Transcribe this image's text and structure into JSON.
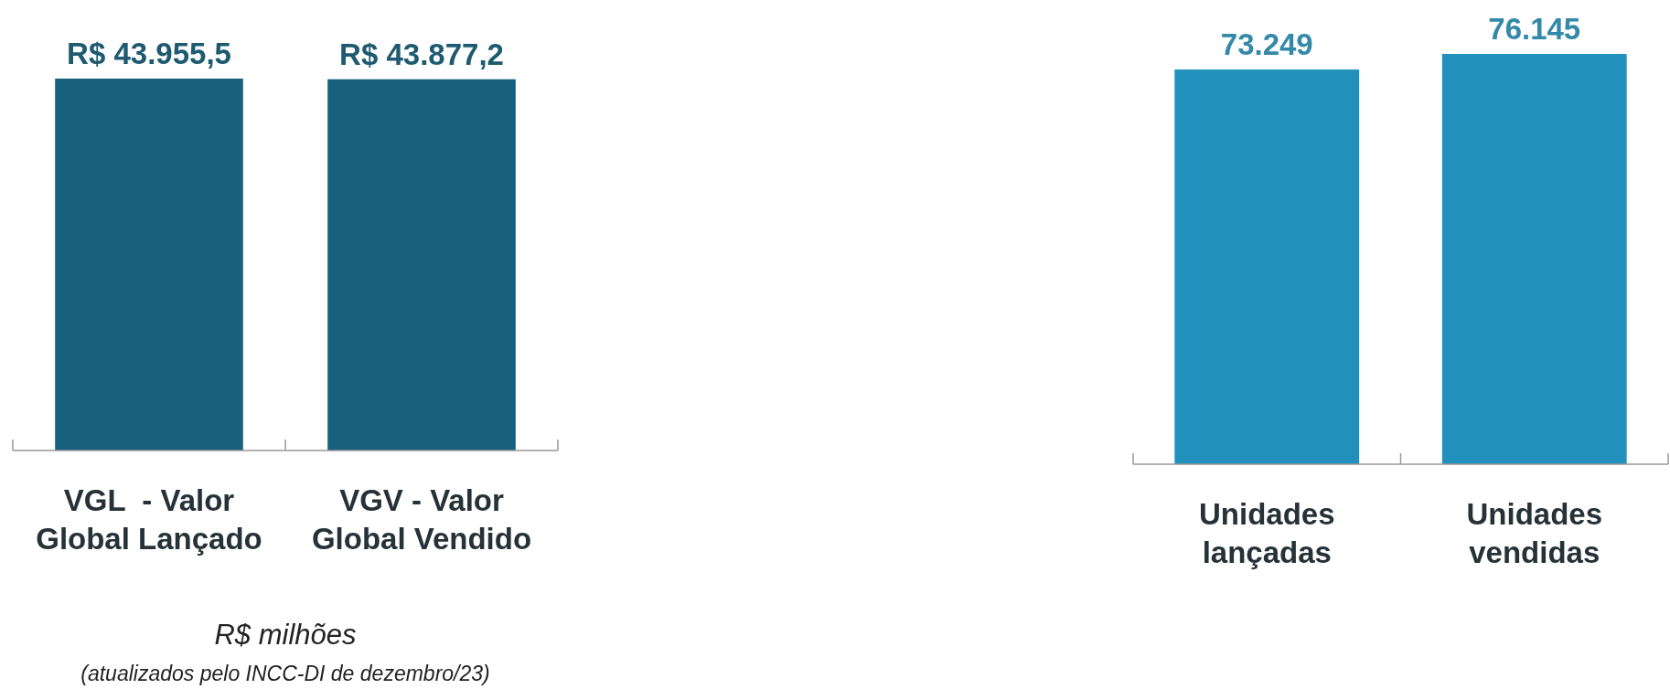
{
  "chart_data": [
    {
      "type": "bar",
      "categories": [
        "VGL  - Valor Global Lançado",
        "VGV - Valor Global Vendido"
      ],
      "values": [
        43955.5,
        43877.2
      ],
      "value_labels": [
        "R$ 43.955,5",
        "R$ 43.877,2"
      ],
      "color": "#17607e",
      "annotations": [
        "R$ milhões",
        "(atualizados pelo INCC-DI de dezembro/23)"
      ]
    },
    {
      "type": "bar",
      "categories": [
        "Unidades lançadas",
        "Unidades vendidas"
      ],
      "values": [
        73249,
        76145
      ],
      "value_labels": [
        "73.249",
        "76.145"
      ],
      "color": "#2190bd"
    }
  ]
}
